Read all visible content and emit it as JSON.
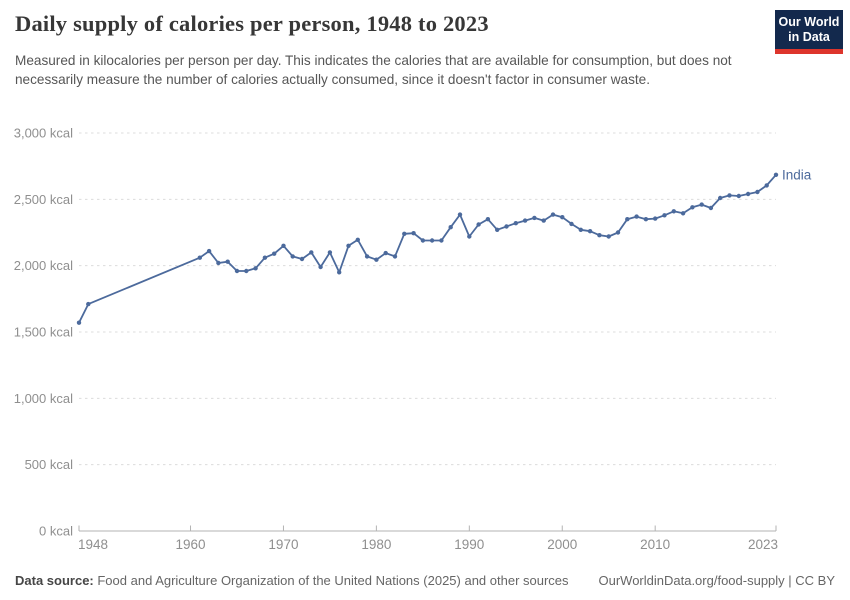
{
  "header": {
    "title": "Daily supply of calories per person, 1948 to 2023",
    "subtitle": "Measured in kilocalories per person per day. This indicates the calories that are available for consumption, but does not necessarily measure the number of calories actually consumed, since it doesn't factor in consumer waste.",
    "logo_line1": "Our World",
    "logo_line2": "in Data"
  },
  "footer": {
    "source_label": "Data source:",
    "source_text": " Food and Agriculture Organization of the United Nations (2025) and other sources",
    "link_text": "OurWorldinData.org/food-supply | CC BY"
  },
  "chart_data": {
    "type": "line",
    "title": "Daily supply of calories per person, 1948 to 2023",
    "entity_label": "India",
    "unit": "kcal",
    "ylim": [
      0,
      3000
    ],
    "ytick_values": [
      0,
      500,
      1000,
      1500,
      2000,
      2500,
      3000
    ],
    "ytick_labels": [
      "0 kcal",
      "500 kcal",
      "1,000 kcal",
      "1,500 kcal",
      "2,000 kcal",
      "2,500 kcal",
      "3,000 kcal"
    ],
    "xlim": [
      1948,
      2023
    ],
    "xtick_values": [
      1948,
      1960,
      1970,
      1980,
      1990,
      2000,
      2010,
      2023
    ],
    "xtick_labels": [
      "1948",
      "1960",
      "1970",
      "1980",
      "1990",
      "2000",
      "2010",
      "2023"
    ],
    "grid": "horizontal-dashed",
    "legend_position": "end-of-line-label",
    "years": [
      1948,
      1949,
      1961,
      1962,
      1963,
      1964,
      1965,
      1966,
      1967,
      1968,
      1969,
      1970,
      1971,
      1972,
      1973,
      1974,
      1975,
      1976,
      1977,
      1978,
      1979,
      1980,
      1981,
      1982,
      1983,
      1984,
      1985,
      1986,
      1987,
      1988,
      1989,
      1990,
      1991,
      1992,
      1993,
      1994,
      1995,
      1996,
      1997,
      1998,
      1999,
      2000,
      2001,
      2002,
      2003,
      2004,
      2005,
      2006,
      2007,
      2008,
      2009,
      2010,
      2011,
      2012,
      2013,
      2014,
      2015,
      2016,
      2017,
      2018,
      2019,
      2020,
      2021,
      2022,
      2023
    ],
    "values": [
      1570,
      1710,
      2060,
      2110,
      2020,
      2030,
      1960,
      1960,
      1980,
      2060,
      2090,
      2150,
      2070,
      2050,
      2100,
      1990,
      2100,
      1950,
      2150,
      2195,
      2070,
      2045,
      2095,
      2070,
      2240,
      2245,
      2190,
      2190,
      2190,
      2290,
      2385,
      2220,
      2310,
      2350,
      2270,
      2295,
      2320,
      2340,
      2360,
      2340,
      2385,
      2365,
      2315,
      2270,
      2260,
      2230,
      2220,
      2250,
      2350,
      2370,
      2350,
      2355,
      2380,
      2410,
      2395,
      2440,
      2460,
      2435,
      2510,
      2530,
      2525,
      2540,
      2555,
      2605,
      2685
    ],
    "colors": {
      "line": "#4C6A9C",
      "entity_label": "#4C6A9C",
      "gridline": "#dcdcdc",
      "axis": "#b3b3b3",
      "tick_label": "#8f8f8f",
      "logo_bg": "#13294d",
      "logo_stripe": "#dd352c"
    }
  }
}
